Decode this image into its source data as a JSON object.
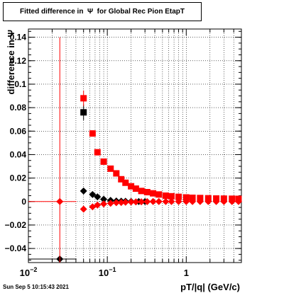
{
  "title": "Fitted difference in  Ψ  for Global Rec Pion EtapT",
  "footer_timestamp": "Sun Sep  5 10:15:43 2021",
  "chart_data": {
    "type": "scatter",
    "title": "Fitted difference in  Ψ  for Global Rec Pion EtapT",
    "xlabel": "pT/|q| (GeV/c)",
    "ylabel": "difference in Ψ",
    "xscale": "log",
    "xlim": [
      0.01,
      5
    ],
    "ylim": [
      -0.052,
      0.147
    ],
    "grid": true,
    "x_ticks": [
      {
        "v": 0.01,
        "base": "10",
        "exp": "−2"
      },
      {
        "v": 0.1,
        "base": "10",
        "exp": "−1"
      },
      {
        "v": 1,
        "base": "1",
        "exp": ""
      }
    ],
    "y_ticks": [
      {
        "v": -0.04,
        "label": "−0.04"
      },
      {
        "v": -0.02,
        "label": "−0.02"
      },
      {
        "v": 0,
        "label": "0"
      },
      {
        "v": 0.02,
        "label": "0.02"
      },
      {
        "v": 0.04,
        "label": "0.04"
      },
      {
        "v": 0.06,
        "label": "0.06"
      },
      {
        "v": 0.08,
        "label": "0.08"
      },
      {
        "v": 0.1,
        "label": "0.1"
      },
      {
        "v": 0.12,
        "label": "0.12"
      },
      {
        "v": 0.14,
        "label": "0.14"
      }
    ],
    "series": [
      {
        "color": "#000000",
        "marker": "square",
        "points": [
          {
            "x": 0.05,
            "y": 0.076
          }
        ]
      },
      {
        "color": "#ff0000",
        "marker": "square",
        "points": [
          {
            "x": 0.05,
            "y": 0.088
          },
          {
            "x": 0.065,
            "y": 0.058
          },
          {
            "x": 0.075,
            "y": 0.042
          },
          {
            "x": 0.09,
            "y": 0.034
          },
          {
            "x": 0.11,
            "y": 0.028
          },
          {
            "x": 0.13,
            "y": 0.024
          },
          {
            "x": 0.15,
            "y": 0.019
          },
          {
            "x": 0.17,
            "y": 0.016
          },
          {
            "x": 0.2,
            "y": 0.013
          },
          {
            "x": 0.23,
            "y": 0.011
          },
          {
            "x": 0.27,
            "y": 0.009
          },
          {
            "x": 0.32,
            "y": 0.008
          },
          {
            "x": 0.38,
            "y": 0.007
          },
          {
            "x": 0.45,
            "y": 0.006
          },
          {
            "x": 0.55,
            "y": 0.005
          },
          {
            "x": 0.65,
            "y": 0.0045
          },
          {
            "x": 0.8,
            "y": 0.004
          },
          {
            "x": 1.0,
            "y": 0.0035
          },
          {
            "x": 1.2,
            "y": 0.0032
          },
          {
            "x": 1.5,
            "y": 0.003
          },
          {
            "x": 1.9,
            "y": 0.0028
          },
          {
            "x": 2.4,
            "y": 0.0026
          },
          {
            "x": 3.0,
            "y": 0.0025
          },
          {
            "x": 3.8,
            "y": 0.0024
          },
          {
            "x": 4.6,
            "y": 0.0023
          }
        ]
      },
      {
        "color": "#000000",
        "marker": "diamond",
        "points": [
          {
            "x": 0.025,
            "y": -0.049,
            "err": 0.0
          },
          {
            "x": 0.05,
            "y": 0.009
          },
          {
            "x": 0.065,
            "y": 0.006
          },
          {
            "x": 0.075,
            "y": 0.004
          },
          {
            "x": 0.09,
            "y": 0.002
          },
          {
            "x": 0.11,
            "y": 0.001
          },
          {
            "x": 0.13,
            "y": 0.0005
          },
          {
            "x": 0.15,
            "y": 0.0003
          },
          {
            "x": 0.17,
            "y": 0.0002
          },
          {
            "x": 0.2,
            "y": 0.0001
          },
          {
            "x": 0.25,
            "y": 0.0
          },
          {
            "x": 0.3,
            "y": 0.0
          }
        ]
      },
      {
        "color": "#ff0000",
        "marker": "diamond",
        "points": [
          {
            "x": 0.025,
            "y": 0.0,
            "err": 0.14
          },
          {
            "x": 0.05,
            "y": -0.0065
          },
          {
            "x": 0.065,
            "y": -0.0045
          },
          {
            "x": 0.075,
            "y": -0.003
          },
          {
            "x": 0.09,
            "y": -0.002
          },
          {
            "x": 0.11,
            "y": -0.0015
          },
          {
            "x": 0.13,
            "y": -0.001
          },
          {
            "x": 0.15,
            "y": -0.0008
          },
          {
            "x": 0.17,
            "y": -0.0006
          },
          {
            "x": 0.2,
            "y": -0.0004
          },
          {
            "x": 0.23,
            "y": -0.0003
          },
          {
            "x": 0.27,
            "y": -0.0002
          },
          {
            "x": 0.32,
            "y": -0.0001
          },
          {
            "x": 0.38,
            "y": 0.0
          },
          {
            "x": 0.45,
            "y": 0.0
          },
          {
            "x": 0.55,
            "y": 0.0
          },
          {
            "x": 0.65,
            "y": 0.0
          },
          {
            "x": 0.8,
            "y": 0.0
          },
          {
            "x": 1.0,
            "y": 0.0
          },
          {
            "x": 1.2,
            "y": 0.0
          },
          {
            "x": 1.5,
            "y": 0.0
          },
          {
            "x": 1.9,
            "y": 0.0
          },
          {
            "x": 2.4,
            "y": 0.0
          },
          {
            "x": 3.0,
            "y": 0.0
          },
          {
            "x": 3.8,
            "y": 0.0
          },
          {
            "x": 4.6,
            "y": 0.0
          }
        ]
      }
    ]
  }
}
